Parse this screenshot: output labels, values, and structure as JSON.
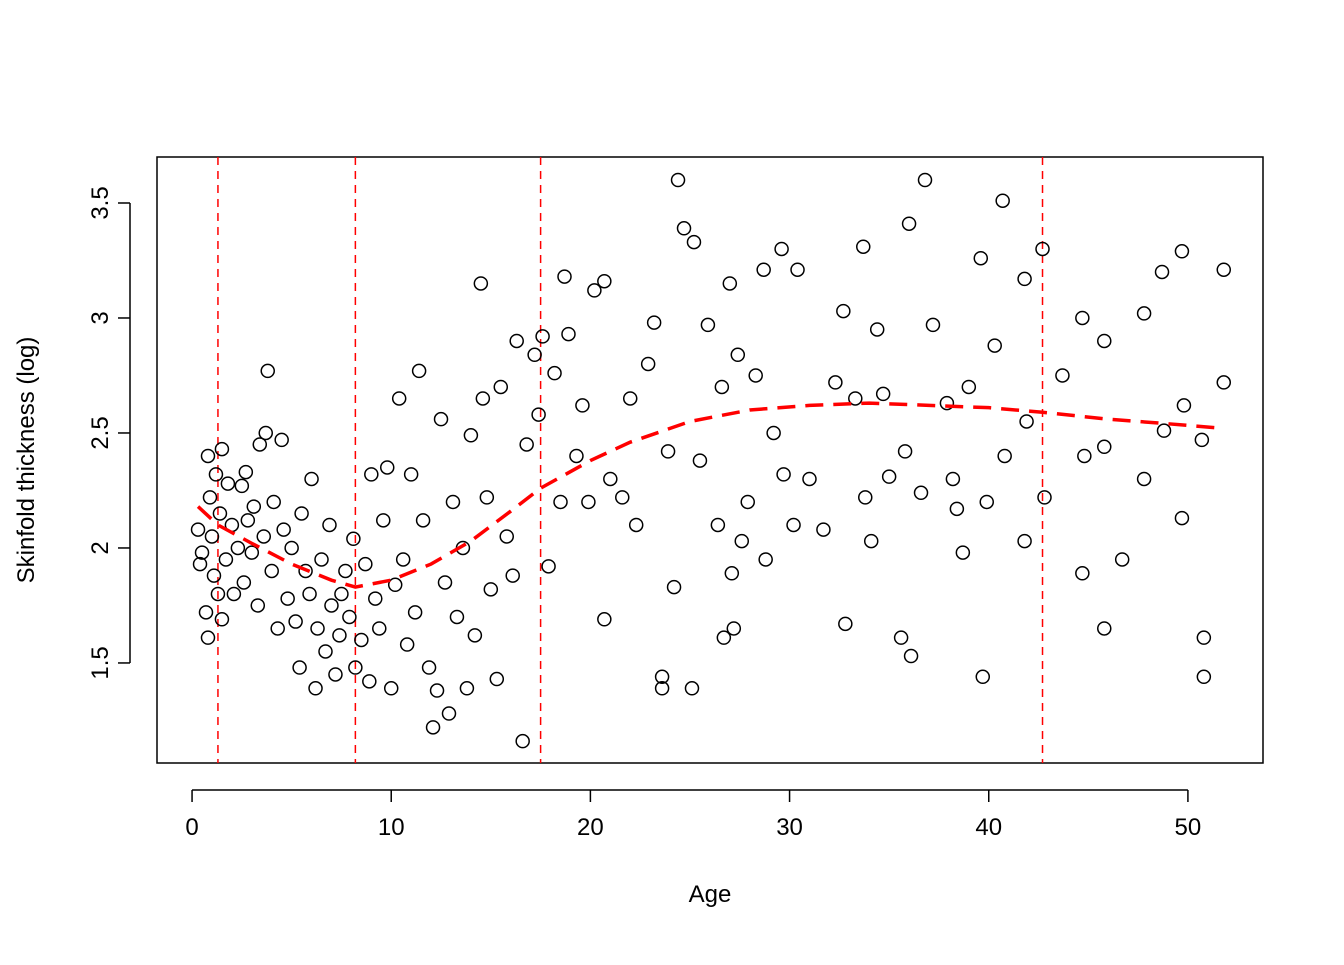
{
  "chart_data": {
    "type": "scatter",
    "x_label": "Age",
    "y_label": "Skinfold thickness (log)",
    "xlim": [
      -1.76,
      53.77
    ],
    "ylim": [
      1.065,
      3.7
    ],
    "xticks": [
      0,
      10,
      20,
      30,
      40,
      50
    ],
    "yticks": [
      1.5,
      2.0,
      2.5,
      3.0,
      3.5
    ],
    "color": "#000000",
    "x": [
      0.3,
      0.4,
      0.5,
      0.7,
      0.8,
      0.8,
      0.9,
      1.0,
      1.1,
      1.2,
      1.3,
      1.4,
      1.5,
      1.5,
      1.7,
      1.8,
      2.0,
      2.1,
      2.3,
      2.5,
      2.6,
      2.7,
      2.8,
      3.0,
      3.1,
      3.3,
      3.4,
      3.6,
      3.7,
      3.8,
      4.0,
      4.1,
      4.3,
      4.5,
      4.6,
      4.8,
      5.0,
      5.2,
      5.4,
      5.5,
      5.7,
      5.9,
      6.0,
      6.2,
      6.3,
      6.5,
      6.7,
      6.9,
      7.0,
      7.2,
      7.4,
      7.5,
      7.7,
      7.9,
      8.1,
      8.2,
      8.5,
      8.7,
      8.9,
      9.0,
      9.2,
      9.4,
      9.6,
      9.8,
      10.0,
      10.2,
      10.4,
      10.6,
      10.8,
      11.0,
      11.2,
      11.4,
      11.6,
      11.9,
      12.1,
      12.3,
      12.5,
      12.7,
      12.9,
      13.1,
      13.3,
      13.6,
      13.8,
      14.0,
      14.2,
      14.5,
      14.6,
      14.8,
      15.0,
      15.3,
      15.5,
      15.8,
      16.1,
      16.3,
      16.6,
      16.8,
      17.2,
      17.4,
      17.6,
      17.9,
      18.2,
      18.5,
      18.7,
      18.9,
      19.3,
      19.6,
      19.9,
      20.2,
      20.7,
      20.7,
      21.0,
      21.6,
      22.0,
      22.3,
      22.9,
      23.2,
      23.6,
      23.6,
      23.9,
      24.2,
      24.4,
      24.7,
      25.1,
      25.2,
      25.5,
      25.9,
      26.4,
      26.6,
      26.7,
      27.0,
      27.1,
      27.2,
      27.4,
      27.6,
      27.9,
      28.3,
      28.7,
      28.8,
      29.2,
      29.6,
      29.7,
      30.2,
      30.4,
      31.0,
      31.7,
      32.3,
      32.7,
      32.8,
      33.3,
      33.7,
      33.8,
      34.1,
      34.4,
      34.7,
      35.0,
      35.6,
      35.8,
      36.0,
      36.1,
      36.6,
      36.8,
      37.2,
      37.9,
      38.2,
      38.4,
      38.7,
      39.0,
      39.6,
      39.7,
      39.9,
      40.3,
      40.7,
      40.8,
      41.8,
      41.8,
      41.9,
      42.7,
      42.8,
      43.7,
      44.7,
      44.7,
      44.8,
      45.8,
      45.8,
      45.8,
      46.7,
      47.8,
      47.8,
      48.7,
      48.8,
      49.7,
      49.7,
      49.8,
      50.7,
      50.8,
      50.8,
      51.8,
      51.8
    ],
    "values": [
      2.08,
      1.93,
      1.98,
      1.72,
      1.61,
      2.4,
      2.22,
      2.05,
      1.88,
      2.32,
      1.8,
      2.15,
      2.43,
      1.69,
      1.95,
      2.28,
      2.1,
      1.8,
      2.0,
      2.27,
      1.85,
      2.33,
      2.12,
      1.98,
      2.18,
      1.75,
      2.45,
      2.05,
      2.5,
      2.77,
      1.9,
      2.2,
      1.65,
      2.47,
      2.08,
      1.78,
      2.0,
      1.68,
      1.48,
      2.15,
      1.9,
      1.8,
      2.3,
      1.39,
      1.65,
      1.95,
      1.55,
      2.1,
      1.75,
      1.45,
      1.62,
      1.8,
      1.9,
      1.7,
      2.04,
      1.48,
      1.6,
      1.93,
      1.42,
      2.32,
      1.78,
      1.65,
      2.12,
      2.35,
      1.39,
      1.84,
      2.65,
      1.95,
      1.58,
      2.32,
      1.72,
      2.77,
      2.12,
      1.48,
      1.22,
      1.38,
      2.56,
      1.85,
      1.28,
      2.2,
      1.7,
      2.0,
      1.39,
      2.49,
      1.62,
      3.15,
      2.65,
      2.22,
      1.82,
      1.43,
      2.7,
      2.05,
      1.88,
      2.9,
      1.16,
      2.45,
      2.84,
      2.58,
      2.92,
      1.92,
      2.76,
      2.2,
      3.18,
      2.93,
      2.4,
      2.62,
      2.2,
      3.12,
      3.16,
      1.69,
      2.3,
      2.22,
      2.65,
      2.1,
      2.8,
      2.98,
      1.44,
      1.39,
      2.42,
      1.83,
      3.6,
      3.39,
      1.39,
      3.33,
      2.38,
      2.97,
      2.1,
      2.7,
      1.61,
      3.15,
      1.89,
      1.65,
      2.84,
      2.03,
      2.2,
      2.75,
      3.21,
      1.95,
      2.5,
      3.3,
      2.32,
      2.1,
      3.21,
      2.3,
      2.08,
      2.72,
      3.03,
      1.67,
      2.65,
      3.31,
      2.22,
      2.03,
      2.95,
      2.67,
      2.31,
      1.61,
      2.42,
      3.41,
      1.53,
      2.24,
      3.6,
      2.97,
      2.63,
      2.3,
      2.17,
      1.98,
      2.7,
      3.26,
      1.44,
      2.2,
      2.88,
      3.51,
      2.4,
      3.17,
      2.03,
      2.55,
      3.3,
      2.22,
      2.75,
      3.0,
      1.89,
      2.4,
      2.9,
      1.65,
      2.44,
      1.95,
      3.02,
      2.3,
      3.2,
      2.51,
      3.29,
      2.13,
      2.62,
      2.47,
      1.61,
      1.44,
      3.21,
      2.72
    ],
    "fit_color": "#ff0000",
    "fit_x": [
      0.3,
      1.3,
      3,
      5,
      7,
      8.2,
      10,
      12,
      14,
      16,
      17.5,
      20,
      22,
      25,
      28,
      31,
      34,
      37,
      40,
      42.7,
      46,
      49,
      51.8
    ],
    "fit_values": [
      2.18,
      2.1,
      2.02,
      1.93,
      1.86,
      1.83,
      1.86,
      1.93,
      2.03,
      2.16,
      2.26,
      2.38,
      2.46,
      2.55,
      2.6,
      2.62,
      2.63,
      2.62,
      2.61,
      2.59,
      2.56,
      2.54,
      2.52
    ],
    "vlines": [
      1.3,
      8.2,
      17.5,
      42.7
    ]
  }
}
